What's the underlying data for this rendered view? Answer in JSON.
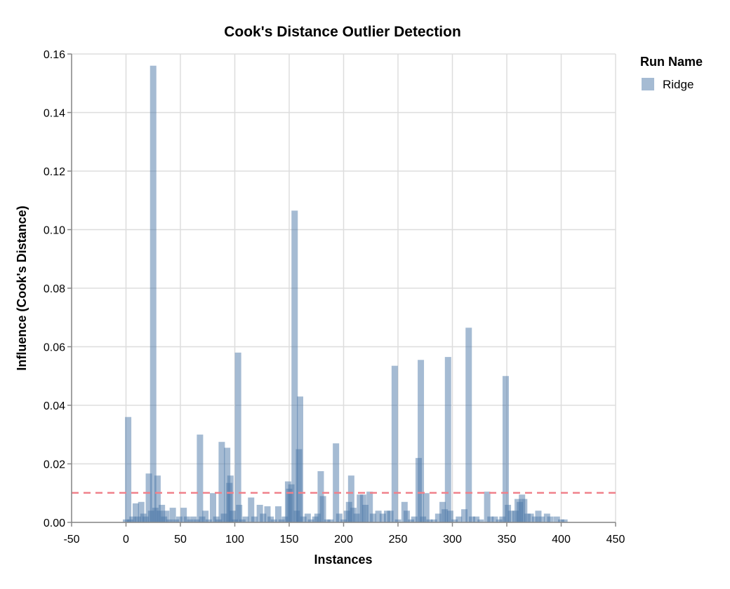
{
  "chart_data": {
    "type": "bar",
    "title": "Cook's Distance Outlier Detection",
    "xlabel": "Instances",
    "ylabel": "Influence (Cook's Distance)",
    "xlim": [
      -50,
      450
    ],
    "ylim": [
      0,
      0.16
    ],
    "xticks": [
      "-50",
      "0",
      "50",
      "100",
      "150",
      "200",
      "250",
      "300",
      "350",
      "400",
      "450"
    ],
    "yticks": [
      "0.00",
      "0.02",
      "0.04",
      "0.06",
      "0.08",
      "0.10",
      "0.12",
      "0.14",
      "0.16"
    ],
    "grid": true,
    "legend": {
      "title": "Run Name",
      "position": "top-right",
      "entries": [
        "Ridge"
      ]
    },
    "series_color": "#4c78a8",
    "threshold": 0.0101,
    "threshold_color": "#f0808a",
    "series": [
      {
        "name": "Ridge",
        "points": [
          [
            0,
            0.001
          ],
          [
            2,
            0.036
          ],
          [
            4,
            0.001
          ],
          [
            6,
            0.002
          ],
          [
            9,
            0.0065
          ],
          [
            11,
            0.002
          ],
          [
            14,
            0.007
          ],
          [
            16,
            0.003
          ],
          [
            18,
            0.002
          ],
          [
            21,
            0.0167
          ],
          [
            23,
            0.004
          ],
          [
            25,
            0.156
          ],
          [
            27,
            0.005
          ],
          [
            29,
            0.016
          ],
          [
            31,
            0.004
          ],
          [
            33,
            0.006
          ],
          [
            35,
            0.002
          ],
          [
            37,
            0.004
          ],
          [
            40,
            0.001
          ],
          [
            43,
            0.005
          ],
          [
            46,
            0.001
          ],
          [
            49,
            0.002
          ],
          [
            53,
            0.005
          ],
          [
            56,
            0.002
          ],
          [
            59,
            0.001
          ],
          [
            62,
            0.002
          ],
          [
            65,
            0.001
          ],
          [
            68,
            0.03
          ],
          [
            70,
            0.002
          ],
          [
            73,
            0.004
          ],
          [
            76,
            0.001
          ],
          [
            80,
            0.01
          ],
          [
            83,
            0.002
          ],
          [
            85,
            0.001
          ],
          [
            88,
            0.0275
          ],
          [
            90,
            0.003
          ],
          [
            93,
            0.0255
          ],
          [
            95,
            0.0135
          ],
          [
            96,
            0.016
          ],
          [
            98,
            0.004
          ],
          [
            100,
            0.001
          ],
          [
            103,
            0.058
          ],
          [
            104,
            0.006
          ],
          [
            107,
            0.001
          ],
          [
            110,
            0.002
          ],
          [
            115,
            0.0085
          ],
          [
            118,
            0.002
          ],
          [
            123,
            0.006
          ],
          [
            126,
            0.003
          ],
          [
            130,
            0.0055
          ],
          [
            133,
            0.002
          ],
          [
            136,
            0.001
          ],
          [
            140,
            0.0055
          ],
          [
            143,
            0.001
          ],
          [
            146,
            0.002
          ],
          [
            149,
            0.014
          ],
          [
            150,
            0.0115
          ],
          [
            152,
            0.013
          ],
          [
            155,
            0.1065
          ],
          [
            157,
            0.004
          ],
          [
            159,
            0.025
          ],
          [
            160,
            0.043
          ],
          [
            163,
            0.002
          ],
          [
            167,
            0.003
          ],
          [
            170,
            0.001
          ],
          [
            174,
            0.002
          ],
          [
            176,
            0.003
          ],
          [
            179,
            0.0175
          ],
          [
            181,
            0.009
          ],
          [
            185,
            0.001
          ],
          [
            188,
            0.001
          ],
          [
            193,
            0.027
          ],
          [
            196,
            0.003
          ],
          [
            200,
            0.001
          ],
          [
            203,
            0.004
          ],
          [
            205,
            0.007
          ],
          [
            207,
            0.016
          ],
          [
            209,
            0.005
          ],
          [
            212,
            0.003
          ],
          [
            215,
            0.0095
          ],
          [
            218,
            0.0095
          ],
          [
            220,
            0.006
          ],
          [
            224,
            0.0105
          ],
          [
            227,
            0.003
          ],
          [
            232,
            0.004
          ],
          [
            236,
            0.003
          ],
          [
            240,
            0.004
          ],
          [
            243,
            0.004
          ],
          [
            247,
            0.0535
          ],
          [
            250,
            0.001
          ],
          [
            256,
            0.007
          ],
          [
            258,
            0.004
          ],
          [
            262,
            0.001
          ],
          [
            265,
            0.002
          ],
          [
            269,
            0.022
          ],
          [
            271,
            0.0555
          ],
          [
            273,
            0.002
          ],
          [
            276,
            0.01
          ],
          [
            279,
            0.001
          ],
          [
            283,
            0.001
          ],
          [
            287,
            0.003
          ],
          [
            291,
            0.007
          ],
          [
            293,
            0.0045
          ],
          [
            296,
            0.0565
          ],
          [
            298,
            0.004
          ],
          [
            302,
            0.001
          ],
          [
            306,
            0.002
          ],
          [
            311,
            0.0045
          ],
          [
            315,
            0.0665
          ],
          [
            318,
            0.002
          ],
          [
            322,
            0.002
          ],
          [
            326,
            0.001
          ],
          [
            332,
            0.0105
          ],
          [
            335,
            0.002
          ],
          [
            339,
            0.002
          ],
          [
            343,
            0.001
          ],
          [
            346,
            0.002
          ],
          [
            349,
            0.05
          ],
          [
            351,
            0.006
          ],
          [
            354,
            0.004
          ],
          [
            358,
            0.004
          ],
          [
            360,
            0.008
          ],
          [
            362,
            0.007
          ],
          [
            364,
            0.0095
          ],
          [
            366,
            0.008
          ],
          [
            369,
            0.003
          ],
          [
            372,
            0.003
          ],
          [
            376,
            0.002
          ],
          [
            379,
            0.004
          ],
          [
            382,
            0.002
          ],
          [
            387,
            0.003
          ],
          [
            390,
            0.002
          ],
          [
            396,
            0.002
          ],
          [
            400,
            0.001
          ],
          [
            403,
            0.001
          ]
        ]
      }
    ]
  }
}
